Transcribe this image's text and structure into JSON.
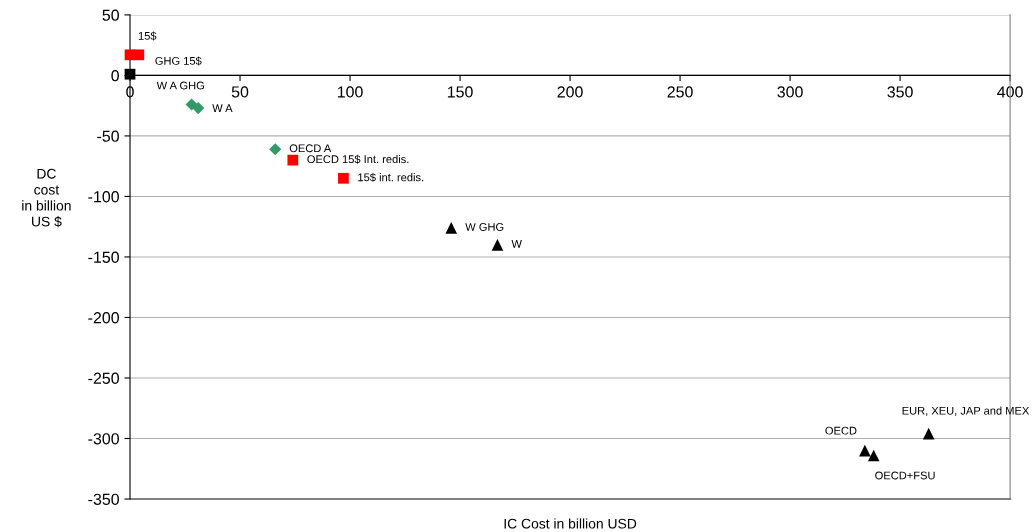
{
  "chart_data": {
    "type": "scatter",
    "xlabel": "IC Cost in billion USD",
    "ylabel": "DC\ncost\nin billion\nUS $",
    "xlim": [
      0,
      400
    ],
    "xticks": [
      0,
      50,
      100,
      150,
      200,
      250,
      300,
      350,
      400
    ],
    "ylim": [
      -350,
      50
    ],
    "yticks": [
      -350,
      -300,
      -250,
      -200,
      -150,
      -100,
      -50,
      0,
      50
    ],
    "grid": "y",
    "legend": false,
    "series": [
      {
        "color": "#ff0000",
        "marker": "square",
        "x": [
          0,
          4,
          74,
          97
        ],
        "values": [
          17,
          17,
          -70,
          -85
        ]
      },
      {
        "color": "#000000",
        "marker": "square",
        "x": [
          0
        ],
        "values": [
          1
        ]
      },
      {
        "color": "#339966",
        "marker": "diamond",
        "x": [
          28,
          31,
          66
        ],
        "values": [
          -24,
          -27,
          -61
        ]
      },
      {
        "color": "#000000",
        "marker": "triangle",
        "x": [
          146,
          167,
          334,
          338,
          363
        ],
        "values": [
          -126,
          -140,
          -310,
          -314,
          -296
        ]
      }
    ],
    "annotations": [
      {
        "text": "15$",
        "x": 0,
        "y": 17
      },
      {
        "text": "GHG 15$",
        "x": 4,
        "y": 17
      },
      {
        "text": "W A GHG",
        "x": 28,
        "y": -24
      },
      {
        "text": "W A",
        "x": 31,
        "y": -27
      },
      {
        "text": "OECD A",
        "x": 66,
        "y": -61
      },
      {
        "text": "OECD 15$ Int. redis.",
        "x": 74,
        "y": -70
      },
      {
        "text": "15$ int. redis.",
        "x": 97,
        "y": -85
      },
      {
        "text": "W GHG",
        "x": 146,
        "y": -126
      },
      {
        "text": "W",
        "x": 167,
        "y": -140
      },
      {
        "text": "OECD",
        "x": 334,
        "y": -310
      },
      {
        "text": "OECD+FSU",
        "x": 338,
        "y": -314
      },
      {
        "text": "EUR, XEU, JAP and MEX",
        "x": 363,
        "y": -296
      }
    ]
  }
}
